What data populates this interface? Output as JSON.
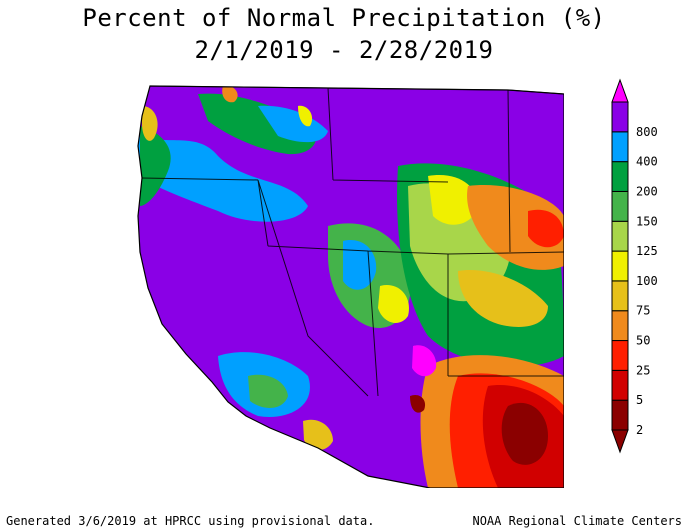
{
  "title_line1": "Percent of Normal Precipitation (%)",
  "title_line2": "2/1/2019 - 2/28/2019",
  "footer_left": "Generated 3/6/2019 at HPRCC using provisional data.",
  "footer_right": "NOAA Regional Climate Centers",
  "legend": {
    "bins": [
      {
        "label": "2",
        "color": "#8b0000"
      },
      {
        "label": "5",
        "color": "#d10000"
      },
      {
        "label": "25",
        "color": "#ff1f00"
      },
      {
        "label": "50",
        "color": "#f08a1c"
      },
      {
        "label": "75",
        "color": "#e6c01a"
      },
      {
        "label": "100",
        "color": "#f0f000"
      },
      {
        "label": "125",
        "color": "#a8d64a"
      },
      {
        "label": "150",
        "color": "#44b34a"
      },
      {
        "label": "200",
        "color": "#00a040"
      },
      {
        "label": "400",
        "color": "#00a0ff"
      },
      {
        "label": "800",
        "color": "#8a00e6"
      }
    ],
    "top_color": "#ff00ff"
  },
  "map_colors": {
    "purple": "#8a00e6",
    "blue": "#00a0ff",
    "green": "#00a040",
    "lightgreen": "#44b34a",
    "yellowgreen": "#a8d64a",
    "yellow": "#f0f000",
    "gold": "#e6c01a",
    "orange": "#f08a1c",
    "red": "#ff1f00",
    "crimson": "#d10000",
    "darkred": "#8b0000",
    "magenta": "#ff00ff"
  }
}
